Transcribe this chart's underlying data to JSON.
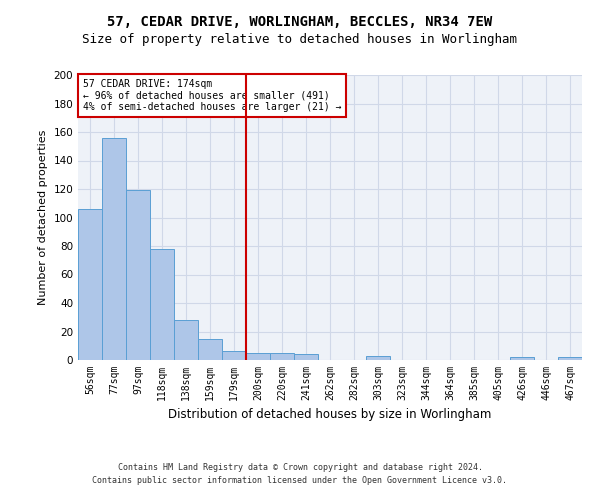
{
  "title_line1": "57, CEDAR DRIVE, WORLINGHAM, BECCLES, NR34 7EW",
  "title_line2": "Size of property relative to detached houses in Worlingham",
  "xlabel": "Distribution of detached houses by size in Worlingham",
  "ylabel": "Number of detached properties",
  "footnote1": "Contains HM Land Registry data © Crown copyright and database right 2024.",
  "footnote2": "Contains public sector information licensed under the Open Government Licence v3.0.",
  "bar_labels": [
    "56sqm",
    "77sqm",
    "97sqm",
    "118sqm",
    "138sqm",
    "159sqm",
    "179sqm",
    "200sqm",
    "220sqm",
    "241sqm",
    "262sqm",
    "282sqm",
    "303sqm",
    "323sqm",
    "344sqm",
    "364sqm",
    "385sqm",
    "405sqm",
    "426sqm",
    "446sqm",
    "467sqm"
  ],
  "bar_values": [
    106,
    156,
    119,
    78,
    28,
    15,
    6,
    5,
    5,
    4,
    0,
    0,
    3,
    0,
    0,
    0,
    0,
    0,
    2,
    0,
    2
  ],
  "bar_color": "#aec6e8",
  "bar_edge_color": "#5a9fd4",
  "grid_color": "#d0d8e8",
  "background_color": "#eef2f8",
  "vline_x": 6.5,
  "vline_color": "#cc0000",
  "annotation_text": "57 CEDAR DRIVE: 174sqm\n← 96% of detached houses are smaller (491)\n4% of semi-detached houses are larger (21) →",
  "annotation_box_color": "#ffffff",
  "annotation_box_edge": "#cc0000",
  "ylim": [
    0,
    200
  ],
  "yticks": [
    0,
    20,
    40,
    60,
    80,
    100,
    120,
    140,
    160,
    180,
    200
  ],
  "title_fontsize": 10,
  "subtitle_fontsize": 9,
  "label_fontsize": 7,
  "ylabel_fontsize": 8,
  "xlabel_fontsize": 8.5,
  "footnote_fontsize": 6
}
